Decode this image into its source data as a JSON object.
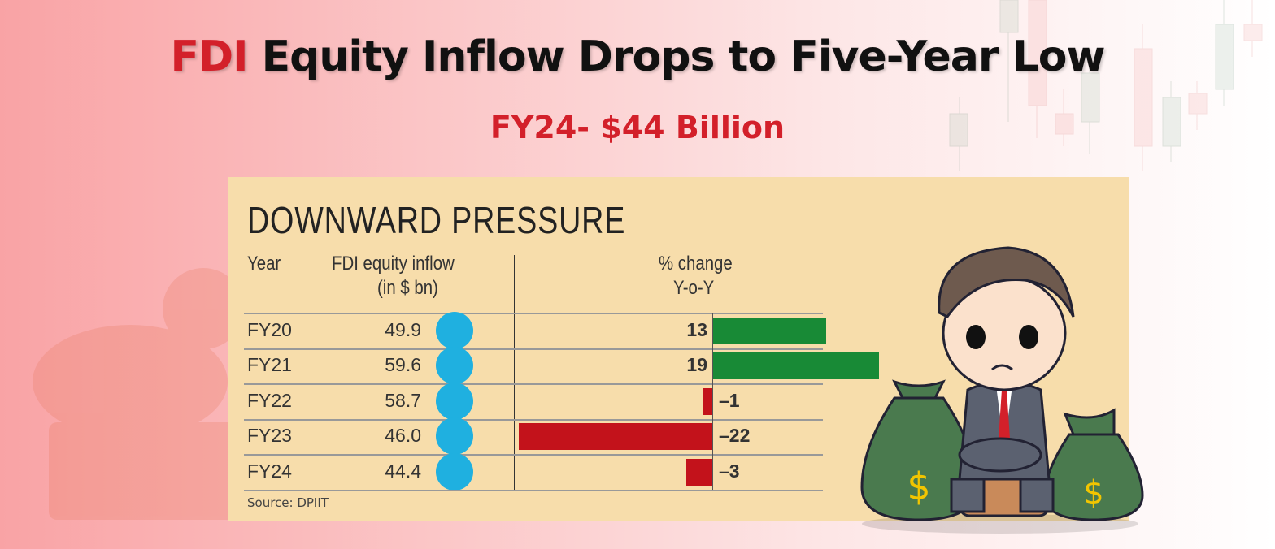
{
  "headline": {
    "highlight": "FDI",
    "rest": " Equity Inflow Drops to Five-Year Low"
  },
  "subheadline": "FY24- $44 Billion",
  "colors": {
    "accent": "#d3202a",
    "positive": "#188a36",
    "negative": "#c3121b",
    "dot": "#1fb0e0",
    "card": "#f7ddab"
  },
  "chart_data": {
    "type": "table",
    "title": "DOWNWARD PRESSURE",
    "columns": [
      "Year",
      "FDI equity inflow (in $ bn)",
      "% change Y-o-Y"
    ],
    "header": {
      "year": "Year",
      "inflow_1": "FDI equity inflow",
      "inflow_2": "(in $ bn)",
      "change_1": "% change",
      "change_2": "Y-o-Y"
    },
    "categories": [
      "FY20",
      "FY21",
      "FY22",
      "FY23",
      "FY24"
    ],
    "inflow": [
      "49.9",
      "59.6",
      "58.7",
      "46.0",
      "44.4"
    ],
    "pct_change": [
      13,
      19,
      -1,
      -22,
      -3
    ],
    "pct_labels": [
      "13",
      "19",
      "–1",
      "–22",
      "–3"
    ],
    "source": "Source: DPIIT"
  }
}
